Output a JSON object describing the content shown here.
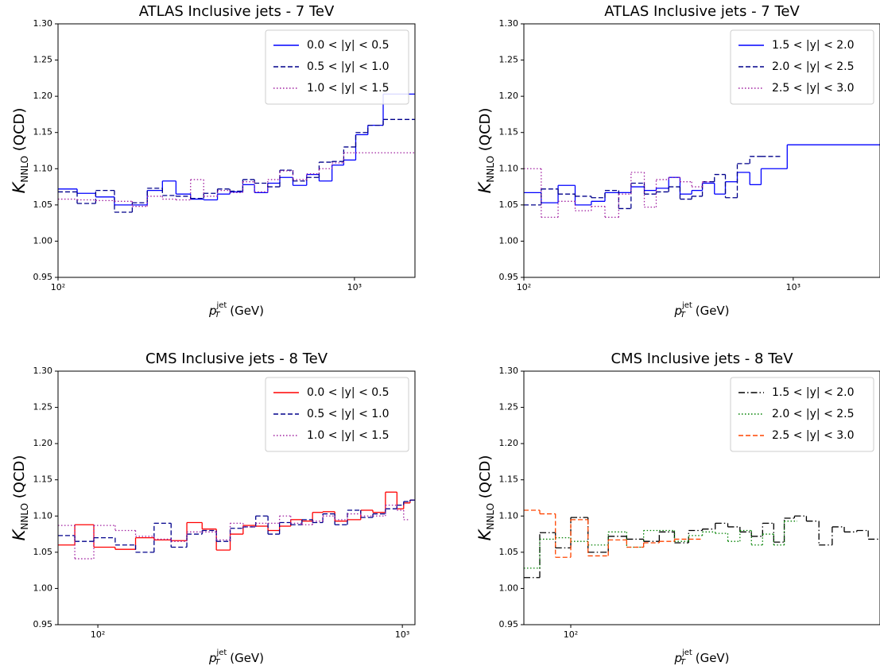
{
  "chart_data": [
    {
      "type": "line",
      "title": "ATLAS Inclusive jets - 7 TeV",
      "xlabel": [
        "p",
        "jet",
        "T",
        " (GeV)"
      ],
      "ylabel": [
        "K",
        "NNLO",
        " (QCD)"
      ],
      "xscale": "log",
      "xlim": [
        100,
        1600
      ],
      "ylim": [
        0.95,
        1.3
      ],
      "legend": "upper right",
      "xticks": [
        {
          "value": 100,
          "label": "10²"
        },
        {
          "value": 1000,
          "label": "10³"
        }
      ],
      "yticks": [
        0.95,
        {
          "value": 1.0,
          "label": "1.00"
        },
        1.05,
        {
          "value": 1.1,
          "label": "1.10"
        },
        1.15,
        {
          "value": 1.2,
          "label": "1.20"
        },
        1.25,
        {
          "value": 1.3,
          "label": "1.30"
        }
      ],
      "series": [
        {
          "name": "0.0 < |y| < 0.5",
          "color": "#0000ff",
          "linestyle": "solid",
          "bins": [
            100,
            116,
            134,
            155,
            178,
            200,
            225,
            250,
            280,
            310,
            345,
            380,
            420,
            460,
            510,
            560,
            620,
            690,
            760,
            840,
            920,
            1010,
            1110,
            1250,
            1600
          ],
          "values": [
            1.072,
            1.066,
            1.061,
            1.05,
            1.05,
            1.07,
            1.083,
            1.065,
            1.058,
            1.057,
            1.065,
            1.068,
            1.078,
            1.067,
            1.08,
            1.088,
            1.077,
            1.092,
            1.083,
            1.105,
            1.112,
            1.147,
            1.16,
            1.203
          ]
        },
        {
          "name": "0.5 < |y| < 1.0",
          "color": "#00008b",
          "linestyle": "dashed",
          "bins": [
            100,
            116,
            134,
            155,
            178,
            200,
            225,
            250,
            280,
            310,
            345,
            380,
            420,
            460,
            510,
            560,
            620,
            690,
            760,
            840,
            920,
            1010,
            1110,
            1250,
            1600
          ],
          "values": [
            1.068,
            1.052,
            1.07,
            1.04,
            1.053,
            1.073,
            1.063,
            1.062,
            1.059,
            1.066,
            1.072,
            1.069,
            1.085,
            1.08,
            1.075,
            1.098,
            1.083,
            1.088,
            1.109,
            1.11,
            1.13,
            1.15,
            1.16,
            1.168
          ]
        },
        {
          "name": "1.0 < |y| < 1.5",
          "color": "#a020a0",
          "linestyle": "dotted",
          "bins": [
            100,
            116,
            134,
            155,
            178,
            200,
            225,
            250,
            280,
            310,
            345,
            380,
            420,
            460,
            510,
            560,
            620,
            690,
            760,
            840,
            920,
            1010,
            1600
          ],
          "values": [
            1.058,
            1.057,
            1.056,
            1.055,
            1.048,
            1.062,
            1.058,
            1.057,
            1.085,
            1.062,
            1.07,
            1.067,
            1.082,
            1.068,
            1.085,
            1.097,
            1.085,
            1.093,
            1.1,
            1.108,
            1.122,
            1.122
          ]
        }
      ]
    },
    {
      "type": "line",
      "title": "ATLAS Inclusive jets - 7 TeV",
      "xlabel": [
        "p",
        "jet",
        "T",
        " (GeV)"
      ],
      "ylabel": [
        "K",
        "NNLO",
        " (QCD)"
      ],
      "xscale": "log",
      "xlim": [
        100,
        2100
      ],
      "ylim": [
        0.95,
        1.3
      ],
      "legend": "upper right",
      "xticks": [
        {
          "value": 100,
          "label": "10²"
        },
        {
          "value": 1000,
          "label": "10³"
        }
      ],
      "yticks": [
        0.95,
        {
          "value": 1.0,
          "label": "1.00"
        },
        1.05,
        {
          "value": 1.1,
          "label": "1.10"
        },
        1.15,
        {
          "value": 1.2,
          "label": "1.20"
        },
        1.25,
        {
          "value": 1.3,
          "label": "1.30"
        }
      ],
      "series": [
        {
          "name": "1.5 < |y| < 2.0",
          "color": "#0000ff",
          "linestyle": "solid",
          "bins": [
            100,
            116,
            134,
            155,
            178,
            200,
            225,
            250,
            280,
            310,
            345,
            380,
            420,
            460,
            510,
            560,
            620,
            690,
            760,
            950,
            2100
          ],
          "values": [
            1.067,
            1.053,
            1.077,
            1.05,
            1.055,
            1.067,
            1.067,
            1.075,
            1.07,
            1.073,
            1.088,
            1.065,
            1.07,
            1.08,
            1.065,
            1.082,
            1.095,
            1.078,
            1.1,
            1.133
          ]
        },
        {
          "name": "2.0 < |y| < 2.5",
          "color": "#00008b",
          "linestyle": "dashed",
          "bins": [
            100,
            116,
            134,
            155,
            178,
            200,
            225,
            250,
            280,
            310,
            345,
            380,
            420,
            460,
            510,
            560,
            620,
            690,
            760,
            900
          ],
          "values": [
            1.05,
            1.072,
            1.065,
            1.062,
            1.06,
            1.07,
            1.045,
            1.08,
            1.065,
            1.068,
            1.075,
            1.058,
            1.062,
            1.082,
            1.092,
            1.06,
            1.107,
            1.117,
            1.117
          ]
        },
        {
          "name": "2.5 < |y| < 3.0",
          "color": "#a020a0",
          "linestyle": "dotted",
          "bins": [
            100,
            116,
            134,
            155,
            178,
            200,
            225,
            250,
            280,
            310,
            345,
            380,
            420,
            460,
            500
          ],
          "values": [
            1.1,
            1.033,
            1.055,
            1.042,
            1.048,
            1.033,
            1.065,
            1.095,
            1.047,
            1.085,
            1.088,
            1.082,
            1.075,
            1.082
          ]
        }
      ]
    },
    {
      "type": "line",
      "title": "CMS Inclusive jets - 8 TeV",
      "xlabel": [
        "p",
        "jet",
        "T",
        " (GeV)"
      ],
      "ylabel": [
        "K",
        "NNLO",
        " (QCD)"
      ],
      "xscale": "log",
      "xlim": [
        74,
        1100
      ],
      "ylim": [
        0.95,
        1.3
      ],
      "legend": "upper right",
      "xticks": [
        {
          "value": 100,
          "label": "10²"
        },
        {
          "value": 1000,
          "label": "10³"
        }
      ],
      "yticks": [
        0.95,
        {
          "value": 1.0,
          "label": "1.00"
        },
        1.05,
        {
          "value": 1.1,
          "label": "1.10"
        },
        1.15,
        {
          "value": 1.2,
          "label": "1.20"
        },
        1.25,
        {
          "value": 1.3,
          "label": "1.30"
        }
      ],
      "series": [
        {
          "name": "0.0 < |y| < 0.5",
          "color": "#ff0000",
          "linestyle": "solid",
          "bins": [
            74,
            84,
            97,
            114,
            133,
            153,
            174,
            196,
            220,
            245,
            272,
            300,
            330,
            362,
            395,
            430,
            468,
            507,
            548,
            600,
            660,
            730,
            800,
            880,
            960,
            1010,
            1060,
            1100
          ],
          "values": [
            1.06,
            1.088,
            1.057,
            1.054,
            1.07,
            1.067,
            1.066,
            1.091,
            1.082,
            1.053,
            1.075,
            1.087,
            1.086,
            1.08,
            1.086,
            1.095,
            1.093,
            1.105,
            1.106,
            1.093,
            1.095,
            1.108,
            1.105,
            1.133,
            1.11,
            1.118,
            1.122
          ]
        },
        {
          "name": "0.5 < |y| < 1.0",
          "color": "#00008b",
          "linestyle": "dashed",
          "bins": [
            74,
            84,
            97,
            114,
            133,
            153,
            174,
            196,
            220,
            245,
            272,
            300,
            330,
            362,
            395,
            430,
            468,
            507,
            548,
            600,
            660,
            730,
            800,
            880,
            960,
            1010,
            1060,
            1100
          ],
          "values": [
            1.073,
            1.065,
            1.07,
            1.06,
            1.05,
            1.09,
            1.057,
            1.075,
            1.08,
            1.065,
            1.083,
            1.085,
            1.1,
            1.075,
            1.091,
            1.088,
            1.095,
            1.091,
            1.103,
            1.088,
            1.108,
            1.098,
            1.103,
            1.11,
            1.115,
            1.12,
            1.122
          ]
        },
        {
          "name": "1.0 < |y| < 1.5",
          "color": "#a020a0",
          "linestyle": "dotted",
          "bins": [
            74,
            84,
            97,
            114,
            133,
            153,
            174,
            196,
            220,
            245,
            272,
            300,
            330,
            362,
            395,
            430,
            468,
            507,
            548,
            600,
            660,
            730,
            800,
            880,
            960,
            1010,
            1060
          ],
          "values": [
            1.087,
            1.041,
            1.087,
            1.08,
            1.072,
            1.068,
            1.065,
            1.078,
            1.078,
            1.067,
            1.09,
            1.085,
            1.09,
            1.09,
            1.1,
            1.09,
            1.088,
            1.093,
            1.1,
            1.095,
            1.103,
            1.1,
            1.1,
            1.115,
            1.108,
            1.095
          ]
        }
      ]
    },
    {
      "type": "line",
      "title": "CMS Inclusive jets - 8 TeV",
      "xlabel": [
        "p",
        "jet",
        "T",
        " (GeV)"
      ],
      "ylabel": [
        "K",
        "NNLO",
        " (QCD)"
      ],
      "xscale": "log",
      "xlim": [
        70,
        1050
      ],
      "ylim": [
        0.95,
        1.3
      ],
      "legend": "upper right",
      "xticks": [
        {
          "value": 100,
          "label": "10²"
        }
      ],
      "yticks": [
        0.95,
        {
          "value": 1.0,
          "label": "1.00"
        },
        1.05,
        {
          "value": 1.1,
          "label": "1.10"
        },
        1.15,
        {
          "value": 1.2,
          "label": "1.20"
        },
        1.25,
        {
          "value": 1.3,
          "label": "1.30"
        }
      ],
      "series": [
        {
          "name": "1.5 < |y| < 2.0",
          "color": "#000000",
          "linestyle": "dashdot",
          "bins": [
            70,
            79,
            89,
            100,
            114,
            133,
            153,
            174,
            196,
            220,
            245,
            272,
            300,
            330,
            362,
            395,
            430,
            468,
            507,
            548,
            600,
            660,
            730,
            800,
            880,
            960,
            1050
          ],
          "values": [
            1.015,
            1.077,
            1.056,
            1.098,
            1.05,
            1.072,
            1.068,
            1.065,
            1.078,
            1.063,
            1.08,
            1.082,
            1.09,
            1.085,
            1.078,
            1.072,
            1.09,
            1.064,
            1.097,
            1.1,
            1.093,
            1.06,
            1.085,
            1.078,
            1.08,
            1.068
          ]
        },
        {
          "name": "2.0 < |y| < 2.5",
          "color": "#008000",
          "linestyle": "dotted",
          "bins": [
            70,
            79,
            89,
            100,
            114,
            133,
            153,
            174,
            196,
            220,
            245,
            272,
            300,
            330,
            362,
            395,
            430,
            468,
            507,
            560
          ],
          "values": [
            1.028,
            1.068,
            1.07,
            1.065,
            1.06,
            1.078,
            1.057,
            1.08,
            1.08,
            1.065,
            1.073,
            1.078,
            1.076,
            1.065,
            1.08,
            1.06,
            1.075,
            1.06,
            1.093
          ]
        },
        {
          "name": "2.5 < |y| < 3.0",
          "color": "#ff4500",
          "linestyle": "dashed",
          "bins": [
            70,
            79,
            89,
            100,
            114,
            133,
            153,
            174,
            196,
            220,
            272
          ],
          "values": [
            1.108,
            1.103,
            1.043,
            1.095,
            1.045,
            1.067,
            1.057,
            1.063,
            1.065,
            1.068
          ]
        }
      ]
    }
  ]
}
